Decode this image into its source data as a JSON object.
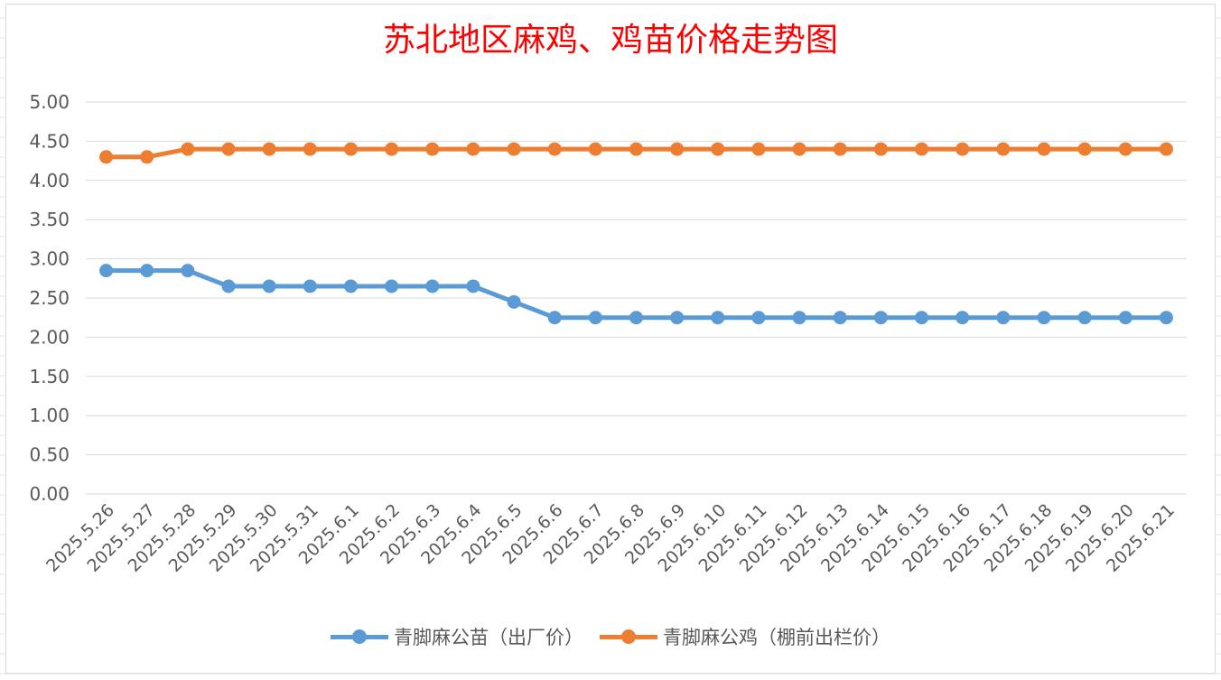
{
  "chart_data": {
    "type": "line",
    "title": "苏北地区麻鸡、鸡苗价格走势图",
    "categories": [
      "2025.5.26",
      "2025.5.27",
      "2025.5.28",
      "2025.5.29",
      "2025.5.30",
      "2025.5.31",
      "2025.6.1",
      "2025.6.2",
      "2025.6.3",
      "2025.6.4",
      "2025.6.5",
      "2025.6.6",
      "2025.6.7",
      "2025.6.8",
      "2025.6.9",
      "2025.6.10",
      "2025.6.11",
      "2025.6.12",
      "2025.6.13",
      "2025.6.14",
      "2025.6.15",
      "2025.6.16",
      "2025.6.17",
      "2025.6.18",
      "2025.6.19",
      "2025.6.20",
      "2025.6.21"
    ],
    "series": [
      {
        "name": "青脚麻公苗（出厂价）",
        "color": "#5b9bd5",
        "values": [
          2.85,
          2.85,
          2.85,
          2.65,
          2.65,
          2.65,
          2.65,
          2.65,
          2.65,
          2.65,
          2.45,
          2.25,
          2.25,
          2.25,
          2.25,
          2.25,
          2.25,
          2.25,
          2.25,
          2.25,
          2.25,
          2.25,
          2.25,
          2.25,
          2.25,
          2.25,
          2.25
        ]
      },
      {
        "name": "青脚麻公鸡（棚前出栏价）",
        "color": "#ed7d31",
        "values": [
          4.3,
          4.3,
          4.4,
          4.4,
          4.4,
          4.4,
          4.4,
          4.4,
          4.4,
          4.4,
          4.4,
          4.4,
          4.4,
          4.4,
          4.4,
          4.4,
          4.4,
          4.4,
          4.4,
          4.4,
          4.4,
          4.4,
          4.4,
          4.4,
          4.4,
          4.4,
          4.4
        ]
      }
    ],
    "yticks": [
      "0.00",
      "0.50",
      "1.00",
      "1.50",
      "2.00",
      "2.50",
      "3.00",
      "3.50",
      "4.00",
      "4.50",
      "5.00"
    ],
    "ylim": [
      0,
      5
    ],
    "xlabel": "",
    "ylabel": "",
    "grid": true,
    "legend_position": "bottom"
  }
}
